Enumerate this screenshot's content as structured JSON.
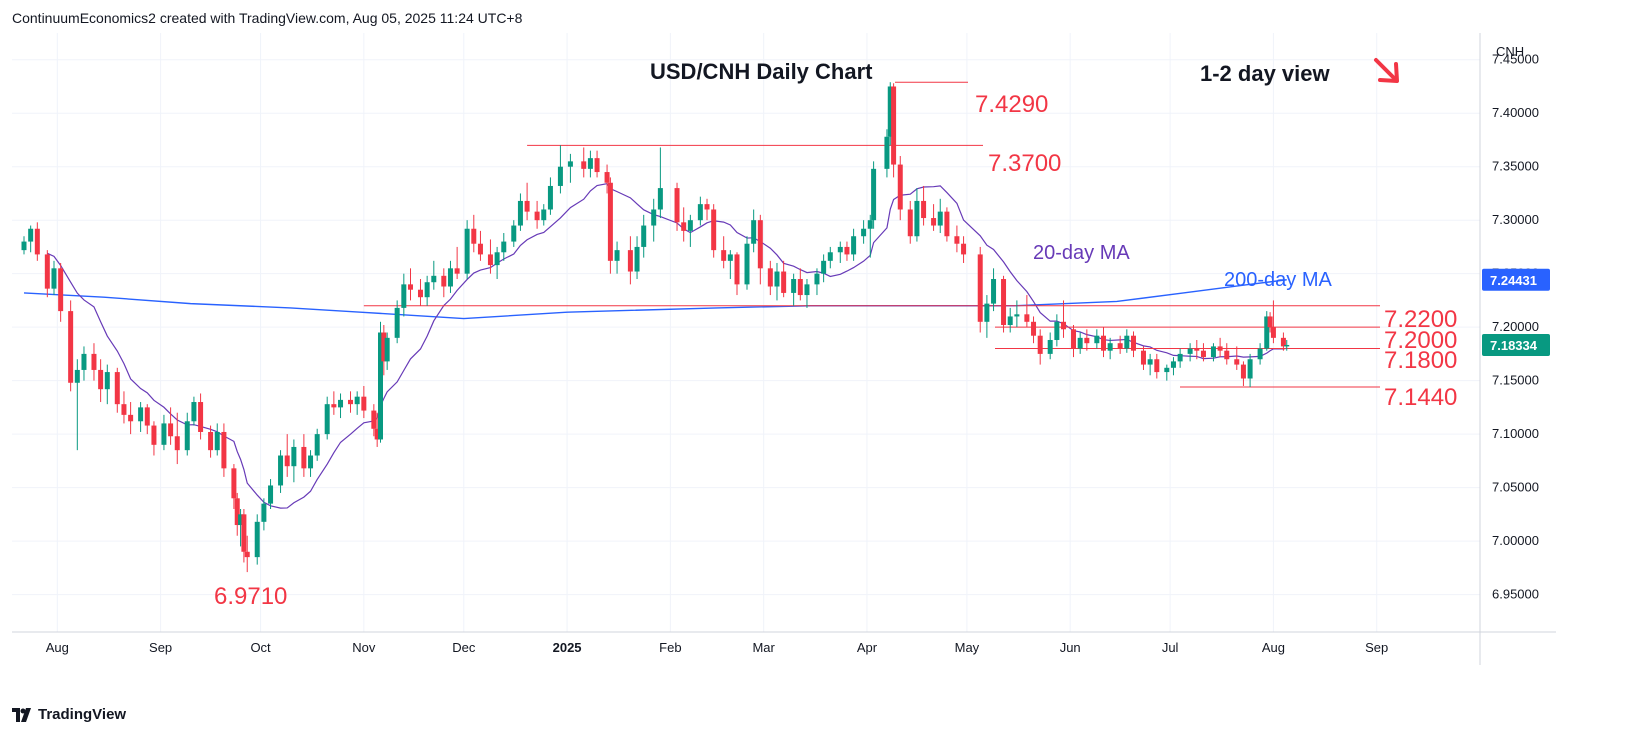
{
  "header": {
    "attribution": "ContinuumEconomics2 created with TradingView.com, Aug 05, 2025 11:24 UTC+8"
  },
  "footer": {
    "brand": "TradingView",
    "logo_icon": "tradingview-logo-icon"
  },
  "colors": {
    "up": "#089981",
    "down": "#f23645",
    "ma20": "#673ab7",
    "ma200": "#2962ff",
    "level": "#f23645",
    "arrow": "#f23645",
    "grid": "#f0f3fa"
  },
  "chart_data": {
    "type": "candlestick",
    "title": "USD/CNH Daily Chart",
    "view_label": "1-2 day view",
    "view_arrow_icon": "down-right-arrow-icon",
    "currency": "CNH",
    "y_ticks": [
      "7.45000",
      "7.40000",
      "7.35000",
      "7.30000",
      "7.25000",
      "7.20000",
      "7.15000",
      "7.10000",
      "7.05000",
      "7.00000",
      "6.95000"
    ],
    "ylim": [
      6.915,
      7.475
    ],
    "x_ticks": [
      "Aug",
      "Sep",
      "Oct",
      "Nov",
      "Dec",
      "2025",
      "Feb",
      "Mar",
      "Apr",
      "May",
      "Jun",
      "Jul",
      "Aug",
      "Sep"
    ],
    "ma_labels": {
      "ma20": "20-day MA",
      "ma200": "200-day MA"
    },
    "price_tags": [
      {
        "label": "7.24431",
        "value": 7.24431,
        "color": "#2962ff"
      },
      {
        "label": "7.18334",
        "value": 7.18334,
        "color": "#089981"
      }
    ],
    "levels": [
      {
        "label": "7.4290",
        "value": 7.429,
        "x_from": "2025-04-01",
        "x_to": "2025-04-15"
      },
      {
        "label": "7.3700",
        "value": 7.37,
        "x_from": "2024-12-20",
        "x_to": "2025-04-30"
      },
      {
        "label": "7.2200",
        "value": 7.22,
        "x_from": "2024-11-01",
        "x_to": "2025-08-08"
      },
      {
        "label": "7.2000",
        "value": 7.2,
        "x_from": "2025-05-01",
        "x_to": "2025-08-08"
      },
      {
        "label": "7.1800",
        "value": 7.18,
        "x_from": "2025-05-01",
        "x_to": "2025-08-08"
      },
      {
        "label": "7.1440",
        "value": 7.144,
        "x_from": "2025-06-10",
        "x_to": "2025-08-08"
      },
      {
        "label": "6.9710",
        "value": 6.971,
        "x_from": null,
        "x_to": null
      }
    ],
    "candles": [
      [
        "2024-07-22",
        7.272,
        7.285,
        7.268,
        7.28
      ],
      [
        "2024-07-24",
        7.28,
        7.295,
        7.27,
        7.292
      ],
      [
        "2024-07-26",
        7.292,
        7.298,
        7.262,
        7.268
      ],
      [
        "2024-07-29",
        7.268,
        7.272,
        7.228,
        7.236
      ],
      [
        "2024-07-31",
        7.236,
        7.262,
        7.23,
        7.255
      ],
      [
        "2024-08-02",
        7.255,
        7.26,
        7.205,
        7.215
      ],
      [
        "2024-08-05",
        7.215,
        7.225,
        7.14,
        7.148
      ],
      [
        "2024-08-07",
        7.148,
        7.17,
        7.085,
        7.16
      ],
      [
        "2024-08-09",
        7.16,
        7.182,
        7.15,
        7.175
      ],
      [
        "2024-08-12",
        7.175,
        7.185,
        7.15,
        7.16
      ],
      [
        "2024-08-14",
        7.16,
        7.17,
        7.13,
        7.142
      ],
      [
        "2024-08-16",
        7.142,
        7.165,
        7.128,
        7.158
      ],
      [
        "2024-08-19",
        7.158,
        7.162,
        7.12,
        7.128
      ],
      [
        "2024-08-21",
        7.128,
        7.14,
        7.11,
        7.118
      ],
      [
        "2024-08-23",
        7.118,
        7.13,
        7.1,
        7.112
      ],
      [
        "2024-08-26",
        7.112,
        7.13,
        7.102,
        7.125
      ],
      [
        "2024-08-28",
        7.125,
        7.128,
        7.1,
        7.108
      ],
      [
        "2024-08-30",
        7.108,
        7.112,
        7.08,
        7.09
      ],
      [
        "2024-09-02",
        7.09,
        7.118,
        7.085,
        7.11
      ],
      [
        "2024-09-04",
        7.11,
        7.125,
        7.09,
        7.098
      ],
      [
        "2024-09-06",
        7.098,
        7.12,
        7.072,
        7.085
      ],
      [
        "2024-09-09",
        7.085,
        7.12,
        7.08,
        7.112
      ],
      [
        "2024-09-11",
        7.112,
        7.135,
        7.108,
        7.13
      ],
      [
        "2024-09-13",
        7.13,
        7.138,
        7.095,
        7.102
      ],
      [
        "2024-09-16",
        7.102,
        7.108,
        7.078,
        7.085
      ],
      [
        "2024-09-18",
        7.085,
        7.11,
        7.08,
        7.102
      ],
      [
        "2024-09-20",
        7.102,
        7.11,
        7.06,
        7.068
      ],
      [
        "2024-09-23",
        7.068,
        7.072,
        7.03,
        7.04
      ],
      [
        "2024-09-24",
        7.04,
        7.045,
        7.005,
        7.015
      ],
      [
        "2024-09-25",
        7.015,
        7.03,
        6.995,
        7.025
      ],
      [
        "2024-09-26",
        7.025,
        7.03,
        6.98,
        6.99
      ],
      [
        "2024-09-27",
        6.99,
        7.005,
        6.971,
        6.985
      ],
      [
        "2024-09-30",
        6.985,
        7.025,
        6.978,
        7.018
      ],
      [
        "2024-10-02",
        7.018,
        7.04,
        7.01,
        7.035
      ],
      [
        "2024-10-04",
        7.035,
        7.058,
        7.03,
        7.052
      ],
      [
        "2024-10-07",
        7.052,
        7.085,
        7.045,
        7.08
      ],
      [
        "2024-10-09",
        7.08,
        7.1,
        7.06,
        7.07
      ],
      [
        "2024-10-11",
        7.07,
        7.095,
        7.055,
        7.088
      ],
      [
        "2024-10-14",
        7.088,
        7.1,
        7.06,
        7.068
      ],
      [
        "2024-10-16",
        7.068,
        7.085,
        7.06,
        7.08
      ],
      [
        "2024-10-18",
        7.08,
        7.105,
        7.075,
        7.1
      ],
      [
        "2024-10-21",
        7.1,
        7.135,
        7.095,
        7.128
      ],
      [
        "2024-10-23",
        7.128,
        7.14,
        7.118,
        7.125
      ],
      [
        "2024-10-25",
        7.125,
        7.138,
        7.115,
        7.132
      ],
      [
        "2024-10-28",
        7.132,
        7.14,
        7.12,
        7.128
      ],
      [
        "2024-10-30",
        7.128,
        7.14,
        7.118,
        7.135
      ],
      [
        "2024-11-01",
        7.135,
        7.145,
        7.115,
        7.122
      ],
      [
        "2024-11-04",
        7.122,
        7.128,
        7.098,
        7.105
      ],
      [
        "2024-11-05",
        7.105,
        7.12,
        7.088,
        7.095
      ],
      [
        "2024-11-06",
        7.095,
        7.205,
        7.092,
        7.195
      ],
      [
        "2024-11-07",
        7.195,
        7.202,
        7.155,
        7.168
      ],
      [
        "2024-11-08",
        7.168,
        7.195,
        7.16,
        7.19
      ],
      [
        "2024-11-11",
        7.19,
        7.225,
        7.185,
        7.218
      ],
      [
        "2024-11-13",
        7.218,
        7.25,
        7.21,
        7.24
      ],
      [
        "2024-11-15",
        7.24,
        7.255,
        7.225,
        7.235
      ],
      [
        "2024-11-18",
        7.235,
        7.245,
        7.22,
        7.228
      ],
      [
        "2024-11-20",
        7.228,
        7.248,
        7.22,
        7.242
      ],
      [
        "2024-11-22",
        7.242,
        7.262,
        7.235,
        7.248
      ],
      [
        "2024-11-25",
        7.248,
        7.255,
        7.228,
        7.238
      ],
      [
        "2024-11-27",
        7.238,
        7.262,
        7.232,
        7.255
      ],
      [
        "2024-11-29",
        7.255,
        7.275,
        7.245,
        7.25
      ],
      [
        "2024-12-02",
        7.25,
        7.3,
        7.245,
        7.292
      ],
      [
        "2024-12-04",
        7.292,
        7.305,
        7.27,
        7.278
      ],
      [
        "2024-12-06",
        7.278,
        7.29,
        7.262,
        7.268
      ],
      [
        "2024-12-09",
        7.268,
        7.282,
        7.25,
        7.258
      ],
      [
        "2024-12-11",
        7.258,
        7.275,
        7.245,
        7.27
      ],
      [
        "2024-12-13",
        7.27,
        7.288,
        7.262,
        7.28
      ],
      [
        "2024-12-16",
        7.28,
        7.3,
        7.275,
        7.295
      ],
      [
        "2024-12-18",
        7.295,
        7.325,
        7.29,
        7.318
      ],
      [
        "2024-12-20",
        7.318,
        7.335,
        7.3,
        7.308
      ],
      [
        "2024-12-23",
        7.308,
        7.318,
        7.292,
        7.3
      ],
      [
        "2024-12-25",
        7.3,
        7.315,
        7.295,
        7.31
      ],
      [
        "2024-12-27",
        7.31,
        7.34,
        7.305,
        7.332
      ],
      [
        "2024-12-30",
        7.332,
        7.37,
        7.325,
        7.35
      ],
      [
        "2025-01-02",
        7.35,
        7.362,
        7.335,
        7.355
      ],
      [
        "2025-01-06",
        7.355,
        7.368,
        7.34,
        7.348
      ],
      [
        "2025-01-08",
        7.348,
        7.365,
        7.34,
        7.358
      ],
      [
        "2025-01-10",
        7.358,
        7.365,
        7.34,
        7.345
      ],
      [
        "2025-01-13",
        7.345,
        7.352,
        7.325,
        7.335
      ],
      [
        "2025-01-14",
        7.335,
        7.34,
        7.25,
        7.262
      ],
      [
        "2025-01-16",
        7.262,
        7.28,
        7.25,
        7.272
      ],
      [
        "2025-01-20",
        7.272,
        7.285,
        7.24,
        7.252
      ],
      [
        "2025-01-22",
        7.252,
        7.285,
        7.245,
        7.275
      ],
      [
        "2025-01-24",
        7.275,
        7.305,
        7.265,
        7.295
      ],
      [
        "2025-01-27",
        7.295,
        7.32,
        7.28,
        7.31
      ],
      [
        "2025-01-29",
        7.31,
        7.368,
        7.302,
        7.33
      ],
      [
        "2025-02-03",
        7.33,
        7.335,
        7.29,
        7.298
      ],
      [
        "2025-02-05",
        7.298,
        7.312,
        7.28,
        7.29
      ],
      [
        "2025-02-07",
        7.29,
        7.305,
        7.275,
        7.3
      ],
      [
        "2025-02-10",
        7.3,
        7.322,
        7.295,
        7.315
      ],
      [
        "2025-02-12",
        7.315,
        7.32,
        7.3,
        7.31
      ],
      [
        "2025-02-14",
        7.31,
        7.315,
        7.265,
        7.272
      ],
      [
        "2025-02-17",
        7.272,
        7.285,
        7.255,
        7.262
      ],
      [
        "2025-02-19",
        7.262,
        7.272,
        7.245,
        7.268
      ],
      [
        "2025-02-21",
        7.268,
        7.27,
        7.23,
        7.24
      ],
      [
        "2025-02-24",
        7.24,
        7.285,
        7.235,
        7.278
      ],
      [
        "2025-02-26",
        7.278,
        7.31,
        7.27,
        7.3
      ],
      [
        "2025-02-28",
        7.3,
        7.305,
        7.24,
        7.255
      ],
      [
        "2025-03-03",
        7.255,
        7.262,
        7.23,
        7.238
      ],
      [
        "2025-03-05",
        7.238,
        7.26,
        7.225,
        7.252
      ],
      [
        "2025-03-07",
        7.252,
        7.262,
        7.228,
        7.232
      ],
      [
        "2025-03-10",
        7.232,
        7.25,
        7.22,
        7.245
      ],
      [
        "2025-03-12",
        7.245,
        7.255,
        7.225,
        7.23
      ],
      [
        "2025-03-14",
        7.23,
        7.245,
        7.218,
        7.24
      ],
      [
        "2025-03-17",
        7.24,
        7.255,
        7.23,
        7.25
      ],
      [
        "2025-03-19",
        7.25,
        7.268,
        7.242,
        7.262
      ],
      [
        "2025-03-21",
        7.262,
        7.275,
        7.255,
        7.27
      ],
      [
        "2025-03-24",
        7.27,
        7.28,
        7.26,
        7.275
      ],
      [
        "2025-03-26",
        7.275,
        7.28,
        7.262,
        7.268
      ],
      [
        "2025-03-28",
        7.268,
        7.292,
        7.262,
        7.285
      ],
      [
        "2025-03-31",
        7.285,
        7.3,
        7.278,
        7.292
      ],
      [
        "2025-04-02",
        7.292,
        7.305,
        7.265,
        7.3
      ],
      [
        "2025-04-03",
        7.3,
        7.355,
        7.292,
        7.348
      ],
      [
        "2025-04-07",
        7.348,
        7.385,
        7.34,
        7.378
      ],
      [
        "2025-04-08",
        7.378,
        7.429,
        7.37,
        7.425
      ],
      [
        "2025-04-09",
        7.425,
        7.428,
        7.34,
        7.352
      ],
      [
        "2025-04-11",
        7.352,
        7.36,
        7.3,
        7.31
      ],
      [
        "2025-04-14",
        7.31,
        7.318,
        7.278,
        7.285
      ],
      [
        "2025-04-16",
        7.285,
        7.33,
        7.28,
        7.318
      ],
      [
        "2025-04-18",
        7.318,
        7.332,
        7.295,
        7.302
      ],
      [
        "2025-04-21",
        7.302,
        7.315,
        7.29,
        7.295
      ],
      [
        "2025-04-23",
        7.295,
        7.32,
        7.288,
        7.308
      ],
      [
        "2025-04-25",
        7.308,
        7.312,
        7.28,
        7.285
      ],
      [
        "2025-04-28",
        7.285,
        7.295,
        7.27,
        7.278
      ],
      [
        "2025-04-30",
        7.278,
        7.285,
        7.26,
        7.268
      ],
      [
        "2025-05-05",
        7.268,
        7.275,
        7.195,
        7.205
      ],
      [
        "2025-05-07",
        7.205,
        7.23,
        7.19,
        7.222
      ],
      [
        "2025-05-09",
        7.222,
        7.255,
        7.215,
        7.245
      ],
      [
        "2025-05-12",
        7.245,
        7.248,
        7.195,
        7.202
      ],
      [
        "2025-05-14",
        7.202,
        7.218,
        7.195,
        7.21
      ],
      [
        "2025-05-16",
        7.21,
        7.225,
        7.2,
        7.212
      ],
      [
        "2025-05-19",
        7.212,
        7.23,
        7.2,
        7.205
      ],
      [
        "2025-05-21",
        7.205,
        7.21,
        7.185,
        7.192
      ],
      [
        "2025-05-23",
        7.192,
        7.198,
        7.165,
        7.175
      ],
      [
        "2025-05-26",
        7.175,
        7.195,
        7.17,
        7.188
      ],
      [
        "2025-05-28",
        7.188,
        7.212,
        7.182,
        7.205
      ],
      [
        "2025-05-30",
        7.205,
        7.225,
        7.19,
        7.198
      ],
      [
        "2025-06-02",
        7.198,
        7.202,
        7.172,
        7.18
      ],
      [
        "2025-06-04",
        7.18,
        7.195,
        7.175,
        7.19
      ],
      [
        "2025-06-06",
        7.19,
        7.198,
        7.178,
        7.185
      ],
      [
        "2025-06-09",
        7.185,
        7.198,
        7.18,
        7.192
      ],
      [
        "2025-06-11",
        7.192,
        7.2,
        7.172,
        7.178
      ],
      [
        "2025-06-13",
        7.178,
        7.19,
        7.17,
        7.185
      ],
      [
        "2025-06-16",
        7.185,
        7.192,
        7.175,
        7.18
      ],
      [
        "2025-06-18",
        7.18,
        7.198,
        7.176,
        7.192
      ],
      [
        "2025-06-20",
        7.192,
        7.196,
        7.172,
        7.178
      ],
      [
        "2025-06-23",
        7.178,
        7.182,
        7.16,
        7.165
      ],
      [
        "2025-06-25",
        7.165,
        7.175,
        7.155,
        7.17
      ],
      [
        "2025-06-27",
        7.17,
        7.175,
        7.152,
        7.158
      ],
      [
        "2025-06-30",
        7.158,
        7.165,
        7.15,
        7.162
      ],
      [
        "2025-07-02",
        7.162,
        7.172,
        7.155,
        7.168
      ],
      [
        "2025-07-04",
        7.168,
        7.18,
        7.162,
        7.175
      ],
      [
        "2025-07-07",
        7.175,
        7.185,
        7.168,
        7.18
      ],
      [
        "2025-07-09",
        7.18,
        7.188,
        7.17,
        7.178
      ],
      [
        "2025-07-11",
        7.178,
        7.185,
        7.168,
        7.172
      ],
      [
        "2025-07-14",
        7.172,
        7.185,
        7.168,
        7.182
      ],
      [
        "2025-07-16",
        7.182,
        7.19,
        7.172,
        7.178
      ],
      [
        "2025-07-18",
        7.178,
        7.185,
        7.165,
        7.17
      ],
      [
        "2025-07-21",
        7.17,
        7.182,
        7.16,
        7.165
      ],
      [
        "2025-07-23",
        7.165,
        7.168,
        7.145,
        7.152
      ],
      [
        "2025-07-25",
        7.152,
        7.175,
        7.144,
        7.17
      ],
      [
        "2025-07-28",
        7.17,
        7.185,
        7.165,
        7.18
      ],
      [
        "2025-07-30",
        7.18,
        7.215,
        7.178,
        7.21
      ],
      [
        "2025-07-31",
        7.21,
        7.214,
        7.195,
        7.2
      ],
      [
        "2025-08-01",
        7.2,
        7.225,
        7.185,
        7.19
      ],
      [
        "2025-08-04",
        7.19,
        7.195,
        7.178,
        7.182
      ],
      [
        "2025-08-05",
        7.182,
        7.188,
        7.178,
        7.18334
      ]
    ],
    "ma200": [
      [
        "2024-07-22",
        7.232
      ],
      [
        "2024-08-15",
        7.228
      ],
      [
        "2024-09-10",
        7.222
      ],
      [
        "2024-10-10",
        7.218
      ],
      [
        "2024-10-31",
        7.214
      ],
      [
        "2024-12-01",
        7.208
      ],
      [
        "2025-01-01",
        7.214
      ],
      [
        "2025-02-15",
        7.218
      ],
      [
        "2025-03-15",
        7.22
      ],
      [
        "2025-04-20",
        7.22
      ],
      [
        "2025-05-15",
        7.22
      ],
      [
        "2025-06-15",
        7.224
      ],
      [
        "2025-07-05",
        7.232
      ],
      [
        "2025-07-25",
        7.24
      ],
      [
        "2025-08-05",
        7.24431
      ]
    ]
  }
}
